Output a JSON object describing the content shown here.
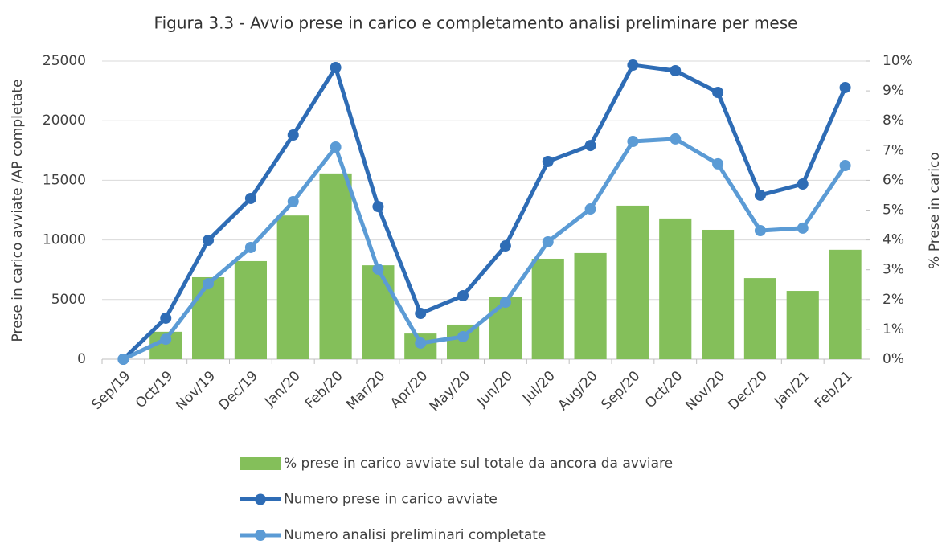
{
  "chart_data": {
    "type": "combo",
    "title": "Figura 3.3 - Avvio prese in carico e completamento analisi preliminare per mese",
    "y_label": "Prese in carico avviate /AP completate",
    "y2_label": "% Prese in carico",
    "categories": [
      "Sep/19",
      "Oct/19",
      "Nov/19",
      "Dec/19",
      "Jan/20",
      "Feb/20",
      "Mar/20",
      "Apr/20",
      "May/20",
      "Jun/20",
      "Jul/20",
      "Aug/20",
      "Sep/20",
      "Oct/20",
      "Nov/20",
      "Dec/20",
      "Jan/21",
      "Feb/21"
    ],
    "series": [
      {
        "name": "%  prese in carico avviate sul totale da ancora da avviare",
        "type": "bar",
        "axis": "y2",
        "color": "#84bf5a",
        "values": [
          0,
          0.92,
          2.75,
          3.29,
          4.82,
          6.23,
          3.15,
          0.86,
          1.16,
          2.1,
          3.37,
          3.56,
          5.15,
          4.72,
          4.34,
          2.72,
          2.29,
          3.67
        ]
      },
      {
        "name": "Numero prese in carico avviate",
        "type": "line",
        "axis": "y",
        "color": "#2e6cb5",
        "values": [
          0,
          3440,
          9970,
          13480,
          18800,
          24460,
          12800,
          3840,
          5320,
          9500,
          16580,
          17920,
          24660,
          24190,
          22370,
          13750,
          14690,
          22780
        ]
      },
      {
        "name": "Numero analisi preliminari completate",
        "type": "line",
        "axis": "y",
        "color": "#5b9bd5",
        "values": [
          0,
          1680,
          6330,
          9370,
          13210,
          17790,
          7550,
          1350,
          1890,
          4780,
          9840,
          12600,
          18260,
          18470,
          16380,
          10780,
          10990,
          16240
        ]
      }
    ],
    "ylim": [
      0,
      25000
    ],
    "yticks": [
      0,
      5000,
      10000,
      15000,
      20000,
      25000
    ],
    "y2lim": [
      0,
      10
    ],
    "y2ticks": [
      {
        "value": 0,
        "label": "0%"
      },
      {
        "value": 1,
        "label": "1%"
      },
      {
        "value": 2,
        "label": "2%"
      },
      {
        "value": 3,
        "label": "3%"
      },
      {
        "value": 4,
        "label": "4%"
      },
      {
        "value": 5,
        "label": "5%"
      },
      {
        "value": 6,
        "label": "6%"
      },
      {
        "value": 7,
        "label": "7%"
      },
      {
        "value": 8,
        "label": "8%"
      },
      {
        "value": 9,
        "label": "9%"
      },
      {
        "value": 10,
        "label": "10%"
      }
    ],
    "grid": true
  }
}
